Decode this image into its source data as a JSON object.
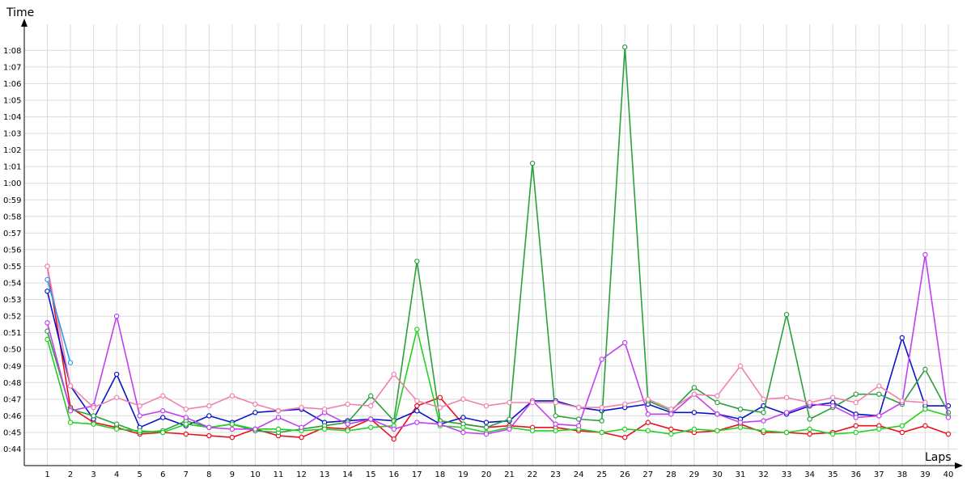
{
  "chart_data": {
    "type": "line",
    "ylabel": "Time",
    "xlabel": "Laps",
    "grid": true,
    "xlim": [
      0.4,
      40.4
    ],
    "ylim": [
      43.4,
      72.0
    ],
    "x": [
      1,
      2,
      3,
      4,
      5,
      6,
      7,
      8,
      9,
      10,
      11,
      12,
      13,
      14,
      15,
      16,
      17,
      18,
      19,
      20,
      21,
      22,
      23,
      24,
      25,
      26,
      27,
      28,
      29,
      30,
      31,
      32,
      33,
      34,
      35,
      36,
      37,
      38,
      39,
      40
    ],
    "y_tick_values": [
      44,
      45,
      46,
      47,
      48,
      49,
      50,
      51,
      52,
      53,
      54,
      55,
      56,
      57,
      58,
      59,
      60,
      61,
      62,
      63,
      64,
      65,
      66,
      67,
      68
    ],
    "y_tick_labels": [
      "0:44",
      "0:45",
      "0:46",
      "0:47",
      "0:48",
      "0:49",
      "0:50",
      "0:51",
      "0:52",
      "0:53",
      "0:54",
      "0:55",
      "0:56",
      "0:57",
      "0:58",
      "0:59",
      "1:00",
      "1:01",
      "1:02",
      "1:03",
      "1:04",
      "1:05",
      "1:06",
      "1:07",
      "1:08"
    ],
    "series": [
      {
        "color": "#e8101a",
        "values": [
          55.0,
          46.5,
          45.6,
          45.3,
          44.9,
          45.0,
          44.9,
          44.8,
          44.7,
          45.2,
          44.8,
          44.7,
          45.3,
          45.2,
          45.8,
          44.6,
          46.6,
          47.1,
          45.5,
          45.3,
          45.4,
          45.3,
          45.3,
          45.1,
          45.0,
          44.7,
          45.6,
          45.2,
          45.0,
          45.1,
          45.5,
          45.0,
          45.0,
          44.9,
          45.0,
          45.4,
          45.4,
          45.0,
          45.4,
          44.9
        ]
      },
      {
        "color": "#0a14c8",
        "values": [
          53.5,
          47.8,
          45.8,
          48.5,
          45.3,
          45.9,
          45.4,
          46.0,
          45.6,
          46.2,
          46.3,
          46.4,
          45.6,
          45.7,
          45.8,
          45.7,
          46.3,
          45.5,
          45.9,
          45.6,
          45.7,
          46.9,
          46.9,
          46.5,
          46.3,
          46.5,
          46.7,
          46.2,
          46.2,
          46.1,
          45.8,
          46.6,
          46.1,
          46.6,
          46.8,
          46.1,
          46.0,
          50.7,
          46.6,
          46.6
        ]
      },
      {
        "color": "#2aa03c",
        "values": [
          51.1,
          46.4,
          46.0,
          45.5,
          45.0,
          45.1,
          45.7,
          45.3,
          45.5,
          45.1,
          45.0,
          45.2,
          45.4,
          45.6,
          47.2,
          45.7,
          55.3,
          45.7,
          45.5,
          45.3,
          45.8,
          61.2,
          46.0,
          45.8,
          45.7,
          68.2,
          46.9,
          46.3,
          47.7,
          46.8,
          46.4,
          46.2,
          52.1,
          45.8,
          46.5,
          47.3,
          47.3,
          46.7,
          48.8,
          46.2
        ]
      },
      {
        "color": "#22d020",
        "values": [
          50.6,
          45.6,
          45.5,
          45.2,
          45.1,
          45.0,
          45.5,
          45.3,
          45.5,
          45.2,
          45.2,
          45.1,
          45.2,
          45.1,
          45.3,
          45.4,
          51.2,
          45.4,
          45.3,
          45.0,
          45.3,
          45.1,
          45.1,
          45.2,
          45.0,
          45.2,
          45.1,
          44.9,
          45.2,
          45.1,
          45.3,
          45.1,
          45.0,
          45.2,
          44.9,
          45.0,
          45.2,
          45.4,
          46.4,
          46.0
        ]
      },
      {
        "color": "#c040f0",
        "values": [
          51.6,
          46.3,
          46.6,
          52.0,
          46.0,
          46.3,
          45.9,
          45.3,
          45.2,
          45.2,
          45.9,
          45.3,
          46.2,
          45.5,
          45.8,
          45.2,
          45.6,
          45.5,
          45.0,
          44.9,
          45.2,
          46.9,
          45.5,
          45.4,
          49.4,
          50.4,
          46.1,
          46.1,
          47.3,
          46.1,
          45.6,
          45.7,
          46.2,
          46.7,
          46.6,
          45.9,
          46.0,
          46.8,
          55.7,
          45.9
        ]
      },
      {
        "color": "#f080b0",
        "values": [
          55.0,
          47.8,
          46.5,
          47.1,
          46.6,
          47.2,
          46.4,
          46.6,
          47.2,
          46.7,
          46.3,
          46.5,
          46.4,
          46.7,
          46.6,
          48.5,
          46.9,
          46.5,
          47.0,
          46.6,
          46.8,
          46.8,
          46.8,
          46.5,
          46.5,
          46.7,
          47.0,
          46.4,
          47.3,
          47.2,
          49.0,
          47.0,
          47.1,
          46.8,
          47.1,
          46.8,
          47.8,
          46.9,
          46.8,
          null
        ]
      },
      {
        "color": "#2a9ae8",
        "values": [
          54.2,
          49.2,
          null,
          null,
          null,
          null,
          null,
          null,
          null,
          null,
          null,
          null,
          null,
          null,
          null,
          null,
          null,
          null,
          null,
          null,
          null,
          null,
          null,
          null,
          null,
          null,
          null,
          null,
          null,
          null,
          null,
          null,
          null,
          null,
          null,
          null,
          null,
          null,
          null,
          null
        ]
      }
    ]
  }
}
